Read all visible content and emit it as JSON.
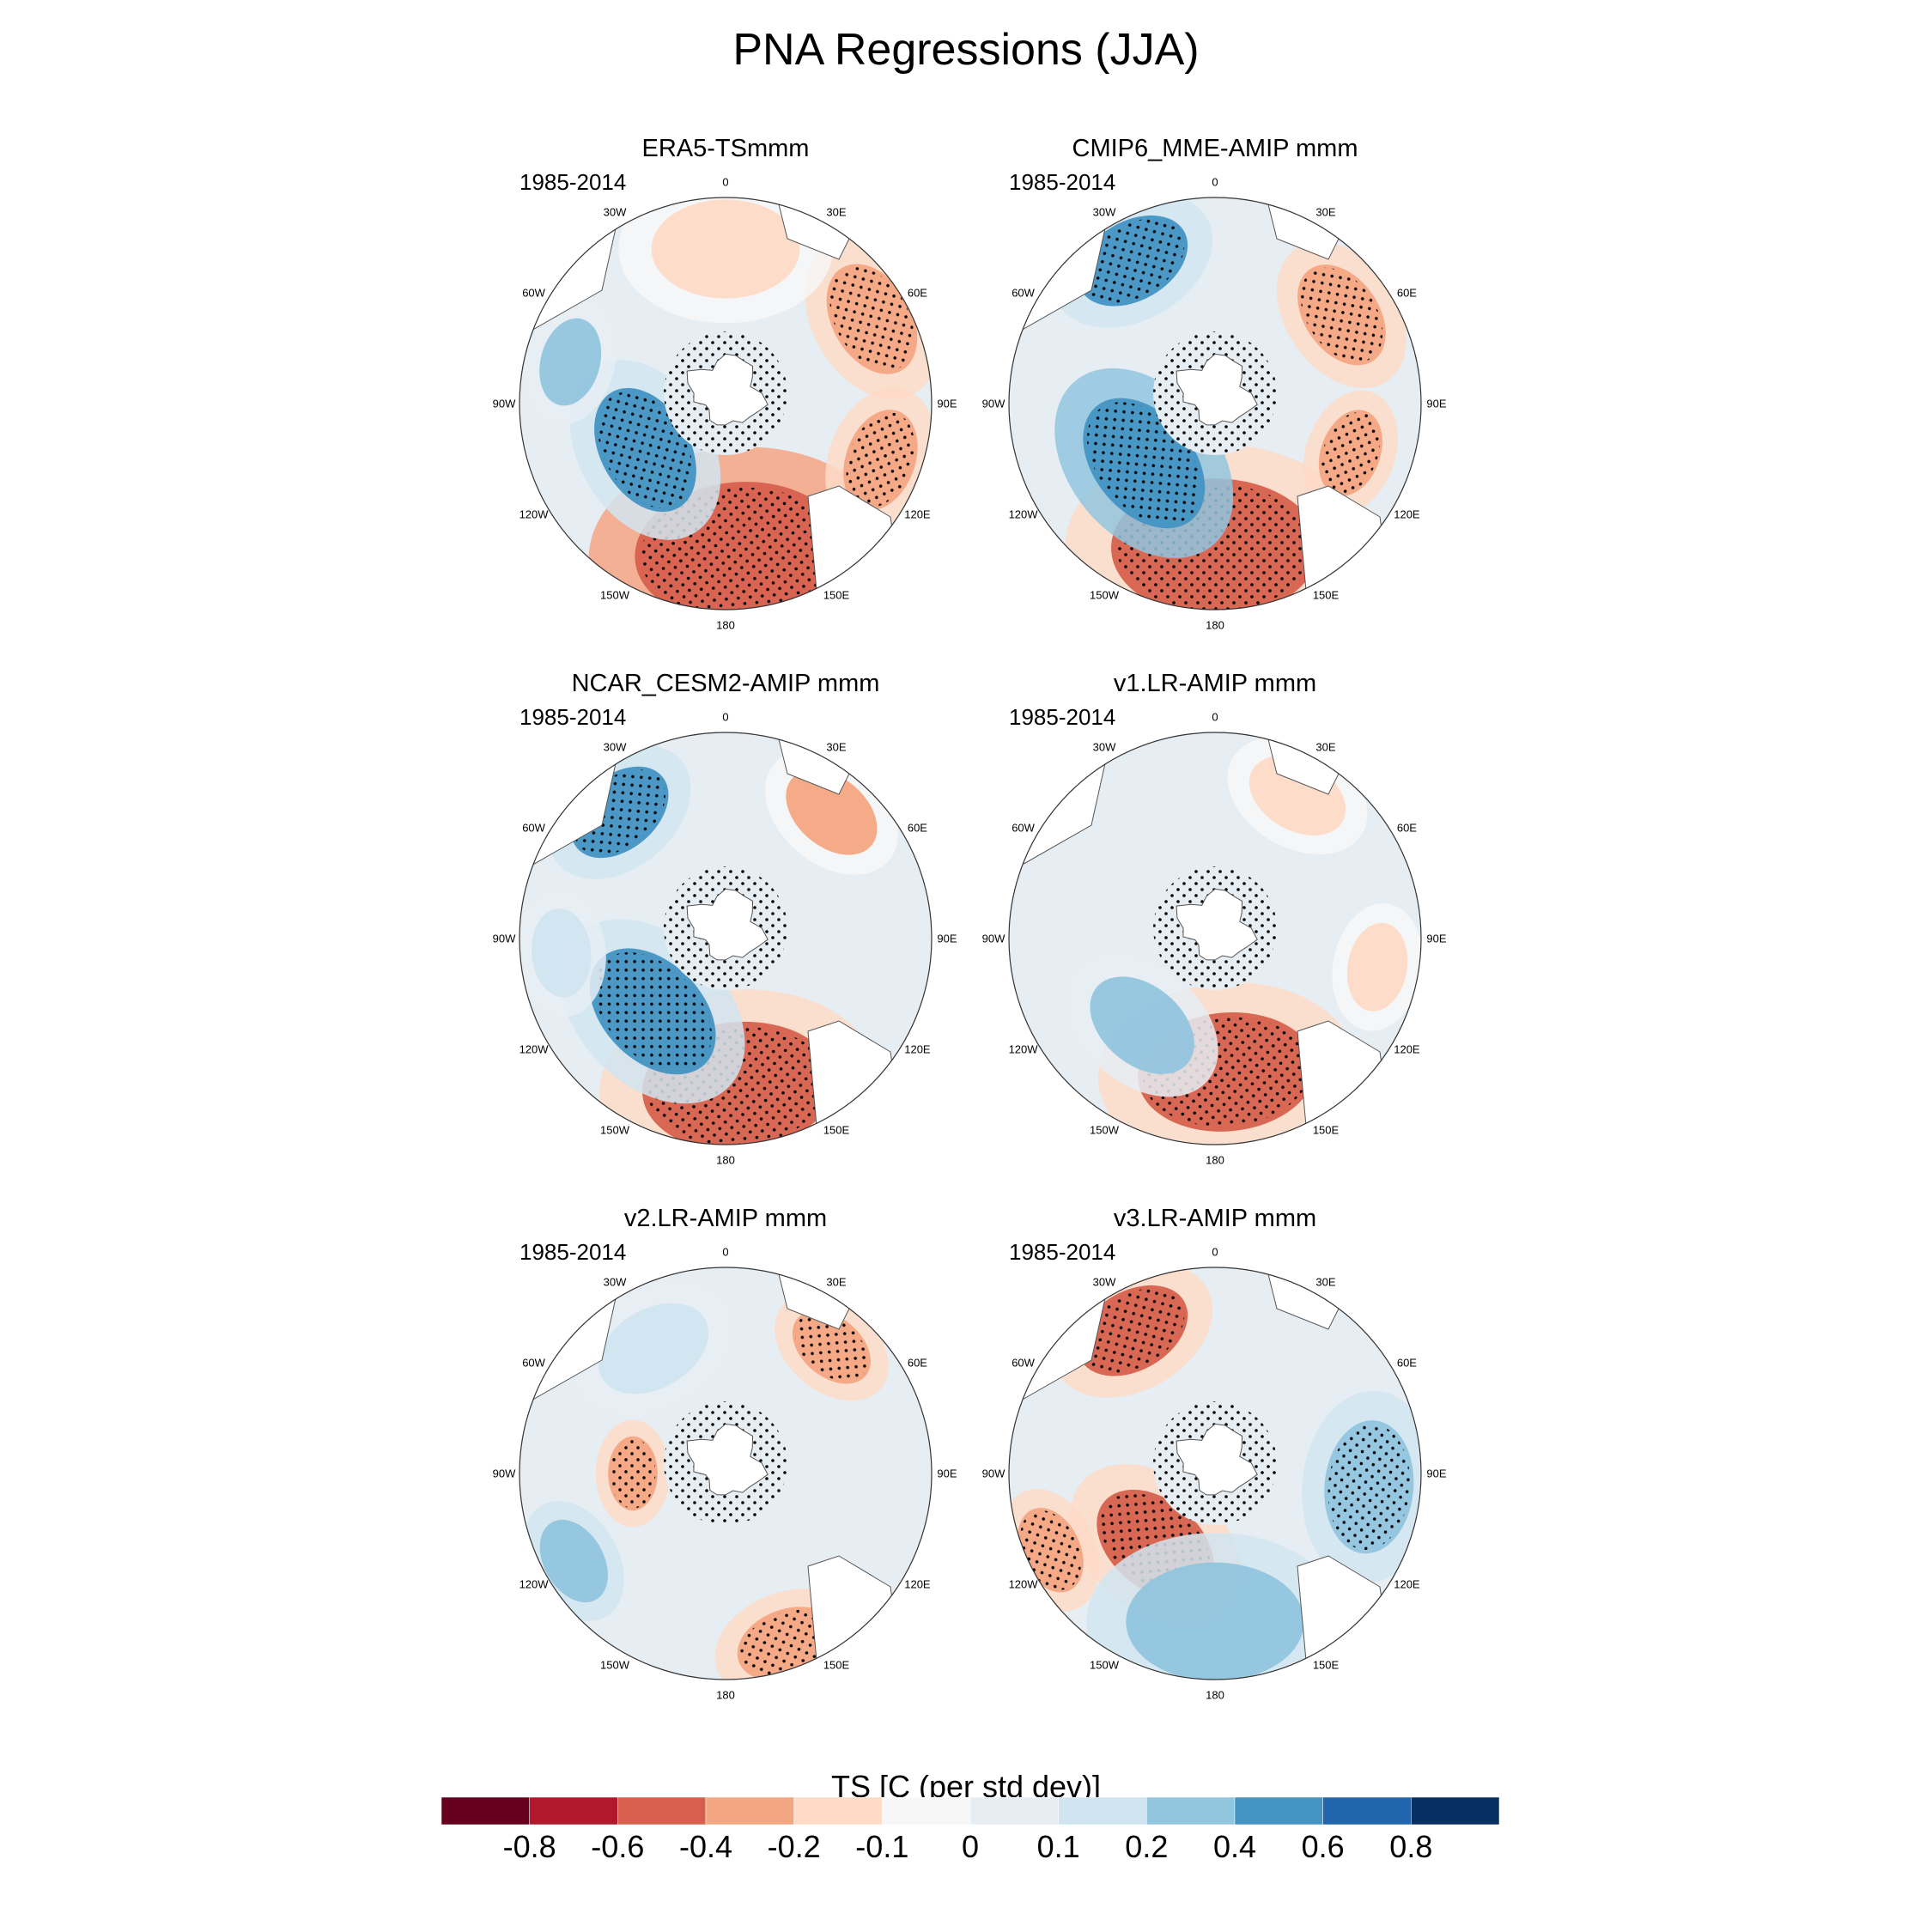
{
  "title": "PNA Regressions (JJA)",
  "chart_data": {
    "type": "heatmap",
    "projection": "south polar stereographic",
    "title": "PNA Regressions (JJA)",
    "colorbar_title": "TS [C (per std dev)]",
    "colorbar_levels": [
      "-0.8",
      "-0.6",
      "-0.4",
      "-0.2",
      "-0.1",
      "0",
      "0.1",
      "0.2",
      "0.4",
      "0.6",
      "0.8"
    ],
    "colorbar_colors": [
      "#67001f",
      "#b2182b",
      "#d6604d",
      "#f4a582",
      "#fddbc7",
      "#f7f7f7",
      "#e6edf3",
      "#d1e5f0",
      "#92c5de",
      "#4393c3",
      "#2166ac",
      "#053061"
    ],
    "longitude_labels": [
      "0",
      "30E",
      "60E",
      "90E",
      "120E",
      "150E",
      "180",
      "150W",
      "120W",
      "90W",
      "60W",
      "30W"
    ],
    "panels": [
      {
        "title": "ERA5-TSmmm",
        "period": "1985-2014",
        "features": [
          {
            "lon": 175,
            "r": 0.72,
            "value": -0.6,
            "size": 0.28
          },
          {
            "lon": -120,
            "r": 0.45,
            "value": 0.4,
            "size": 0.18
          },
          {
            "lon": 60,
            "r": 0.82,
            "value": -0.4,
            "size": 0.16
          },
          {
            "lon": 110,
            "r": 0.8,
            "value": -0.3,
            "size": 0.14
          },
          {
            "lon": 0,
            "r": 0.75,
            "value": -0.2,
            "size": 0.2
          },
          {
            "lon": -75,
            "r": 0.78,
            "value": 0.2,
            "size": 0.12
          }
        ]
      },
      {
        "title": "CMIP6_MME-AMIP  mmm",
        "period": "1985-2014",
        "features": [
          {
            "lon": 180,
            "r": 0.7,
            "value": -0.5,
            "size": 0.28
          },
          {
            "lon": -130,
            "r": 0.45,
            "value": 0.5,
            "size": 0.2
          },
          {
            "lon": -30,
            "r": 0.8,
            "value": 0.4,
            "size": 0.16
          },
          {
            "lon": 55,
            "r": 0.75,
            "value": -0.3,
            "size": 0.15
          },
          {
            "lon": 110,
            "r": 0.7,
            "value": -0.3,
            "size": 0.12
          }
        ]
      },
      {
        "title": "NCAR_CESM2-AMIP  mmm",
        "period": "1985-2014",
        "features": [
          {
            "lon": 175,
            "r": 0.72,
            "value": -0.5,
            "size": 0.26
          },
          {
            "lon": -135,
            "r": 0.5,
            "value": 0.45,
            "size": 0.2
          },
          {
            "lon": -40,
            "r": 0.8,
            "value": 0.45,
            "size": 0.15
          },
          {
            "lon": 40,
            "r": 0.8,
            "value": -0.25,
            "size": 0.14
          },
          {
            "lon": -95,
            "r": 0.8,
            "value": 0.15,
            "size": 0.12
          }
        ]
      },
      {
        "title": "v1.LR-AMIP  mmm",
        "period": "1985-2014",
        "features": [
          {
            "lon": 175,
            "r": 0.65,
            "value": -0.45,
            "size": 0.24
          },
          {
            "lon": -140,
            "r": 0.55,
            "value": 0.2,
            "size": 0.16
          },
          {
            "lon": 30,
            "r": 0.8,
            "value": -0.2,
            "size": 0.14
          },
          {
            "lon": 100,
            "r": 0.8,
            "value": -0.2,
            "size": 0.12
          }
        ]
      },
      {
        "title": "v2.LR-AMIP  mmm",
        "period": "1985-2014",
        "features": [
          {
            "lon": 160,
            "r": 0.88,
            "value": -0.3,
            "size": 0.14
          },
          {
            "lon": -90,
            "r": 0.45,
            "value": -0.3,
            "size": 0.1
          },
          {
            "lon": 40,
            "r": 0.8,
            "value": -0.3,
            "size": 0.12
          },
          {
            "lon": -120,
            "r": 0.85,
            "value": 0.25,
            "size": 0.12
          },
          {
            "lon": -30,
            "r": 0.7,
            "value": 0.1,
            "size": 0.16
          }
        ]
      },
      {
        "title": "v3.LR-AMIP  mmm",
        "period": "1985-2014",
        "features": [
          {
            "lon": -140,
            "r": 0.45,
            "value": -0.45,
            "size": 0.18
          },
          {
            "lon": -30,
            "r": 0.8,
            "value": -0.45,
            "size": 0.16
          },
          {
            "lon": 95,
            "r": 0.75,
            "value": 0.35,
            "size": 0.18
          },
          {
            "lon": 180,
            "r": 0.72,
            "value": 0.25,
            "size": 0.24
          },
          {
            "lon": -115,
            "r": 0.88,
            "value": -0.3,
            "size": 0.12
          }
        ]
      }
    ]
  }
}
